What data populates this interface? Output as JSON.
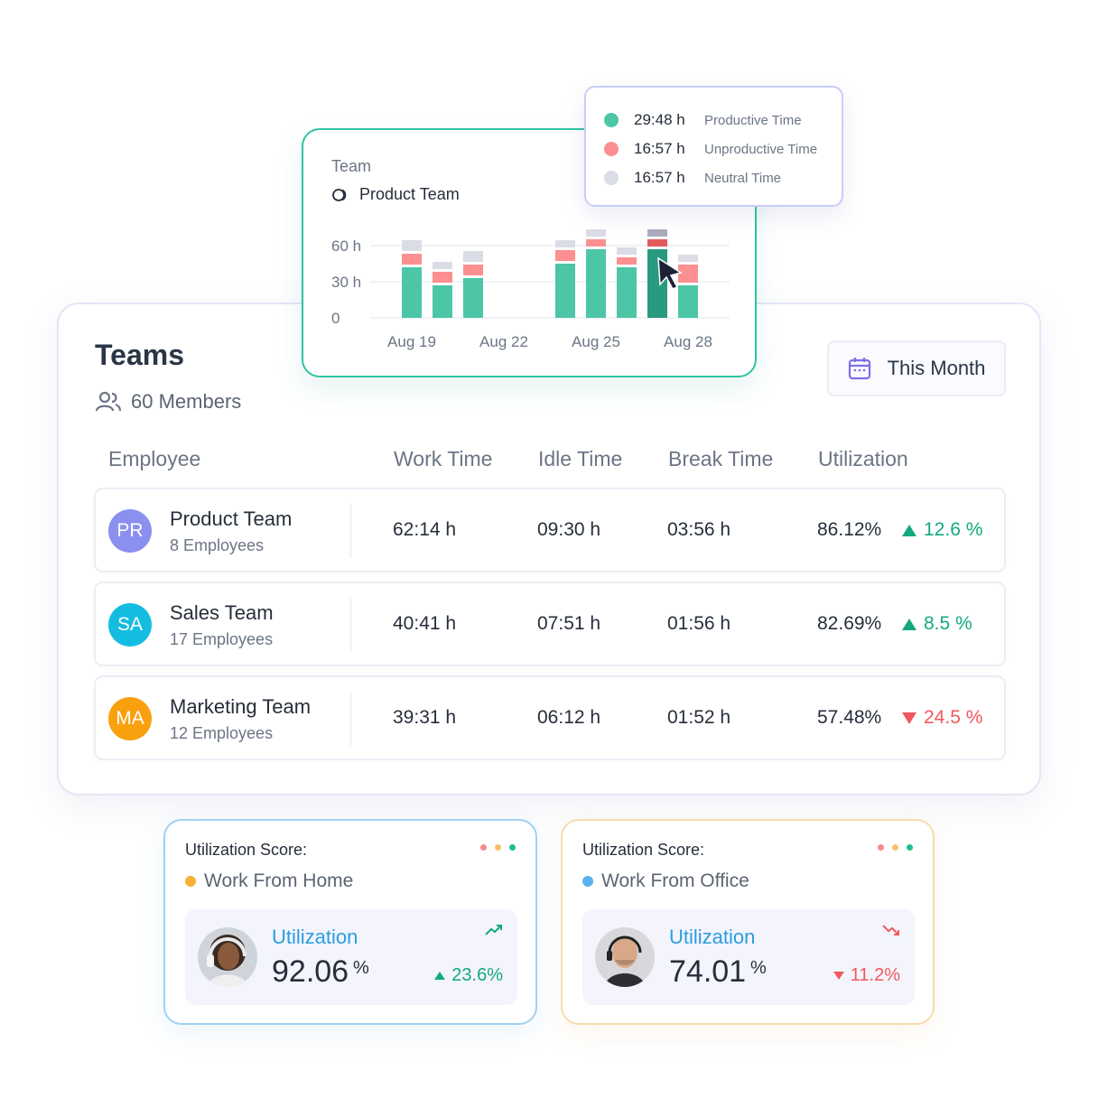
{
  "colors": {
    "productive": "#4cc6a6",
    "productive_active": "#279a7f",
    "unproductive": "#fc8f8f",
    "unproductive_active": "#e25a5e",
    "neutral": "#dadce6",
    "neutral_active": "#a9acbc",
    "positive": "#12a87f",
    "negative": "#f0585e",
    "accent_blue": "#2a9de0"
  },
  "teams_panel": {
    "title": "Teams",
    "members": "60 Members",
    "period_button": "This Month",
    "columns": [
      "Employee",
      "Work Time",
      "Idle Time",
      "Break Time",
      "Utilization"
    ],
    "rows": [
      {
        "initials": "PR",
        "avatar_color": "#8b8ff0",
        "name": "Product Team",
        "employees": "8 Employees",
        "work": "62:14 h",
        "idle": "09:30 h",
        "break": "03:56 h",
        "utilization": "86.12%",
        "trend": "12.6 %",
        "direction": "up"
      },
      {
        "initials": "SA",
        "avatar_color": "#14bde0",
        "name": "Sales Team",
        "employees": "17 Employees",
        "work": "40:41 h",
        "idle": "07:51 h",
        "break": "01:56 h",
        "utilization": "82.69%",
        "trend": "8.5 %",
        "direction": "up"
      },
      {
        "initials": "MA",
        "avatar_color": "#f8a00e",
        "name": "Marketing Team",
        "employees": "12 Employees",
        "work": "39:31 h",
        "idle": "06:12 h",
        "break": "01:52 h",
        "utilization": "57.48%",
        "trend": "24.5 %",
        "direction": "down"
      }
    ]
  },
  "chart_card": {
    "label": "Team",
    "team": "Product Team"
  },
  "chart_data": {
    "type": "bar",
    "stacked": true,
    "yticks": [
      "60 h",
      "30 h",
      "0"
    ],
    "ylim": [
      0,
      60
    ],
    "xticks": [
      "Aug 19",
      "Aug 22",
      "Aug 25",
      "Aug 28"
    ],
    "bars": [
      {
        "productive": 42,
        "unproductive": 9,
        "neutral": 9
      },
      {
        "productive": 27,
        "unproductive": 9,
        "neutral": 6
      },
      {
        "productive": 33,
        "unproductive": 9,
        "neutral": 9
      },
      null,
      null,
      {
        "productive": 45,
        "unproductive": 9,
        "neutral": 6
      },
      {
        "productive": 57,
        "unproductive": 6,
        "neutral": 6
      },
      {
        "productive": 42,
        "unproductive": 6,
        "neutral": 6
      },
      {
        "productive": 57,
        "unproductive": 6,
        "neutral": 6,
        "active": true
      },
      {
        "productive": 27,
        "unproductive": 15,
        "neutral": 6
      }
    ],
    "series": [
      {
        "name": "Productive Time",
        "color": "#4cc6a6"
      },
      {
        "name": "Unproductive Time",
        "color": "#fc8f8f"
      },
      {
        "name": "Neutral Time",
        "color": "#dadce6"
      }
    ]
  },
  "tooltip": {
    "items": [
      {
        "value": "29:48 h",
        "label": "Productive Time",
        "color": "#4cc6a6"
      },
      {
        "value": "16:57 h",
        "label": "Unproductive Time",
        "color": "#fc8f8f"
      },
      {
        "value": "16:57 h",
        "label": "Neutral Time",
        "color": "#dadce6"
      }
    ]
  },
  "util_cards": [
    {
      "title": "Utilization Score:",
      "place": "Work From Home",
      "place_color": "#f8b133",
      "label": "Utilization",
      "value": "92.06",
      "unit": "%",
      "trend": "23.6%",
      "direction": "up"
    },
    {
      "title": "Utilization Score:",
      "place": "Work From Office",
      "place_color": "#5ab3ef",
      "label": "Utilization",
      "value": "74.01",
      "unit": "%",
      "trend": "11.2%",
      "direction": "down"
    }
  ],
  "window_dots": [
    "#f68b8b",
    "#f8c26a",
    "#1fbf8f"
  ]
}
